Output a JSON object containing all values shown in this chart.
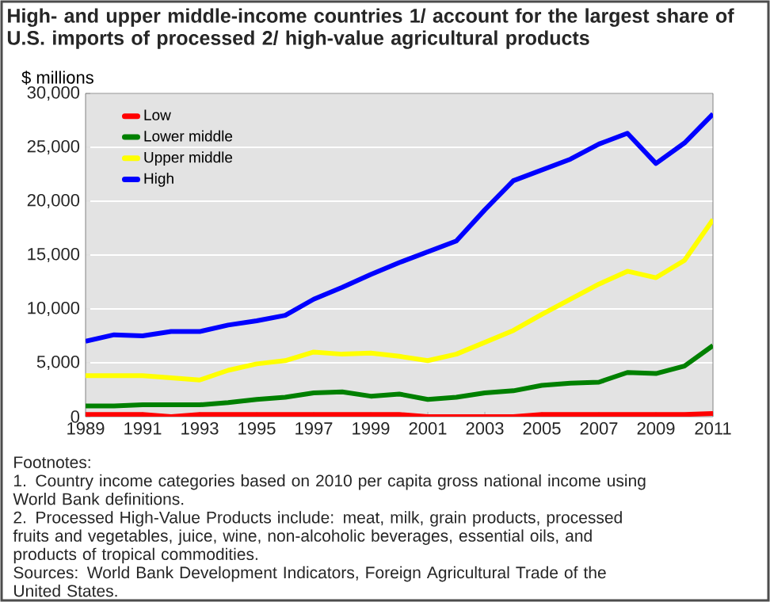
{
  "chart_data": {
    "type": "line",
    "title": "High- and upper middle-income countries 1/ account for the largest share of U.S. imports of processed 2/ high-value agricultural products",
    "ylabel": "$ millions",
    "x": [
      1989,
      1990,
      1991,
      1992,
      1993,
      1994,
      1995,
      1996,
      1997,
      1998,
      1999,
      2000,
      2001,
      2002,
      2003,
      2004,
      2005,
      2006,
      2007,
      2008,
      2009,
      2010,
      2011
    ],
    "series": [
      {
        "name": "Low",
        "color": "#ff0000",
        "values": [
          200,
          200,
          200,
          0,
          200,
          200,
          200,
          200,
          200,
          200,
          200,
          200,
          0,
          0,
          0,
          0,
          200,
          200,
          200,
          200,
          200,
          200,
          300
        ]
      },
      {
        "name": "Lower middle",
        "color": "#008000",
        "values": [
          1000,
          1000,
          1100,
          1100,
          1100,
          1300,
          1600,
          1800,
          2200,
          2300,
          1900,
          2100,
          1600,
          1800,
          2200,
          2400,
          2900,
          3100,
          3200,
          4100,
          4000,
          4700,
          6600
        ]
      },
      {
        "name": "Upper middle",
        "color": "#ffff00",
        "values": [
          3800,
          3800,
          3800,
          3600,
          3400,
          4300,
          4900,
          5200,
          6000,
          5800,
          5900,
          5600,
          5200,
          5800,
          6900,
          8000,
          9500,
          10900,
          12300,
          13500,
          12900,
          14500,
          18300
        ]
      },
      {
        "name": "High",
        "color": "#0000ff",
        "values": [
          7000,
          7600,
          7500,
          7900,
          7900,
          8500,
          8900,
          9400,
          10900,
          12000,
          13200,
          14300,
          15300,
          16300,
          19200,
          21900,
          22900,
          23900,
          25300,
          26300,
          23500,
          25400,
          28100
        ]
      }
    ],
    "xlim": [
      1989,
      2011
    ],
    "xticks": [
      1989,
      1991,
      1993,
      1995,
      1997,
      1999,
      2001,
      2003,
      2005,
      2007,
      2009,
      2011
    ],
    "ylim": [
      0,
      30000
    ],
    "yticks": [
      {
        "value": 0,
        "label": "0"
      },
      {
        "value": 5000,
        "label": "5,000"
      },
      {
        "value": 10000,
        "label": "10,000"
      },
      {
        "value": 15000,
        "label": "15,000"
      },
      {
        "value": 20000,
        "label": "20,000"
      },
      {
        "value": 25000,
        "label": "25,000"
      },
      {
        "value": 30000,
        "label": "30,000"
      }
    ],
    "grid": "y",
    "legend": "top left",
    "marker": "none",
    "line_style": "solid",
    "annotations": [
      "Footnotes:",
      "1. Country income categories based on 2010 per capita gross national income using World Bank definitions.",
      "2.  Processed High-Value Products include:  meat, milk, grain products, processed fruits and vegetables, juice, wine, non-alcoholic beverages, essential oils, and products of tropical commodities.",
      "Sources:  World Bank Development Indicators, Foreign Agricultural Trade of the United States."
    ]
  }
}
